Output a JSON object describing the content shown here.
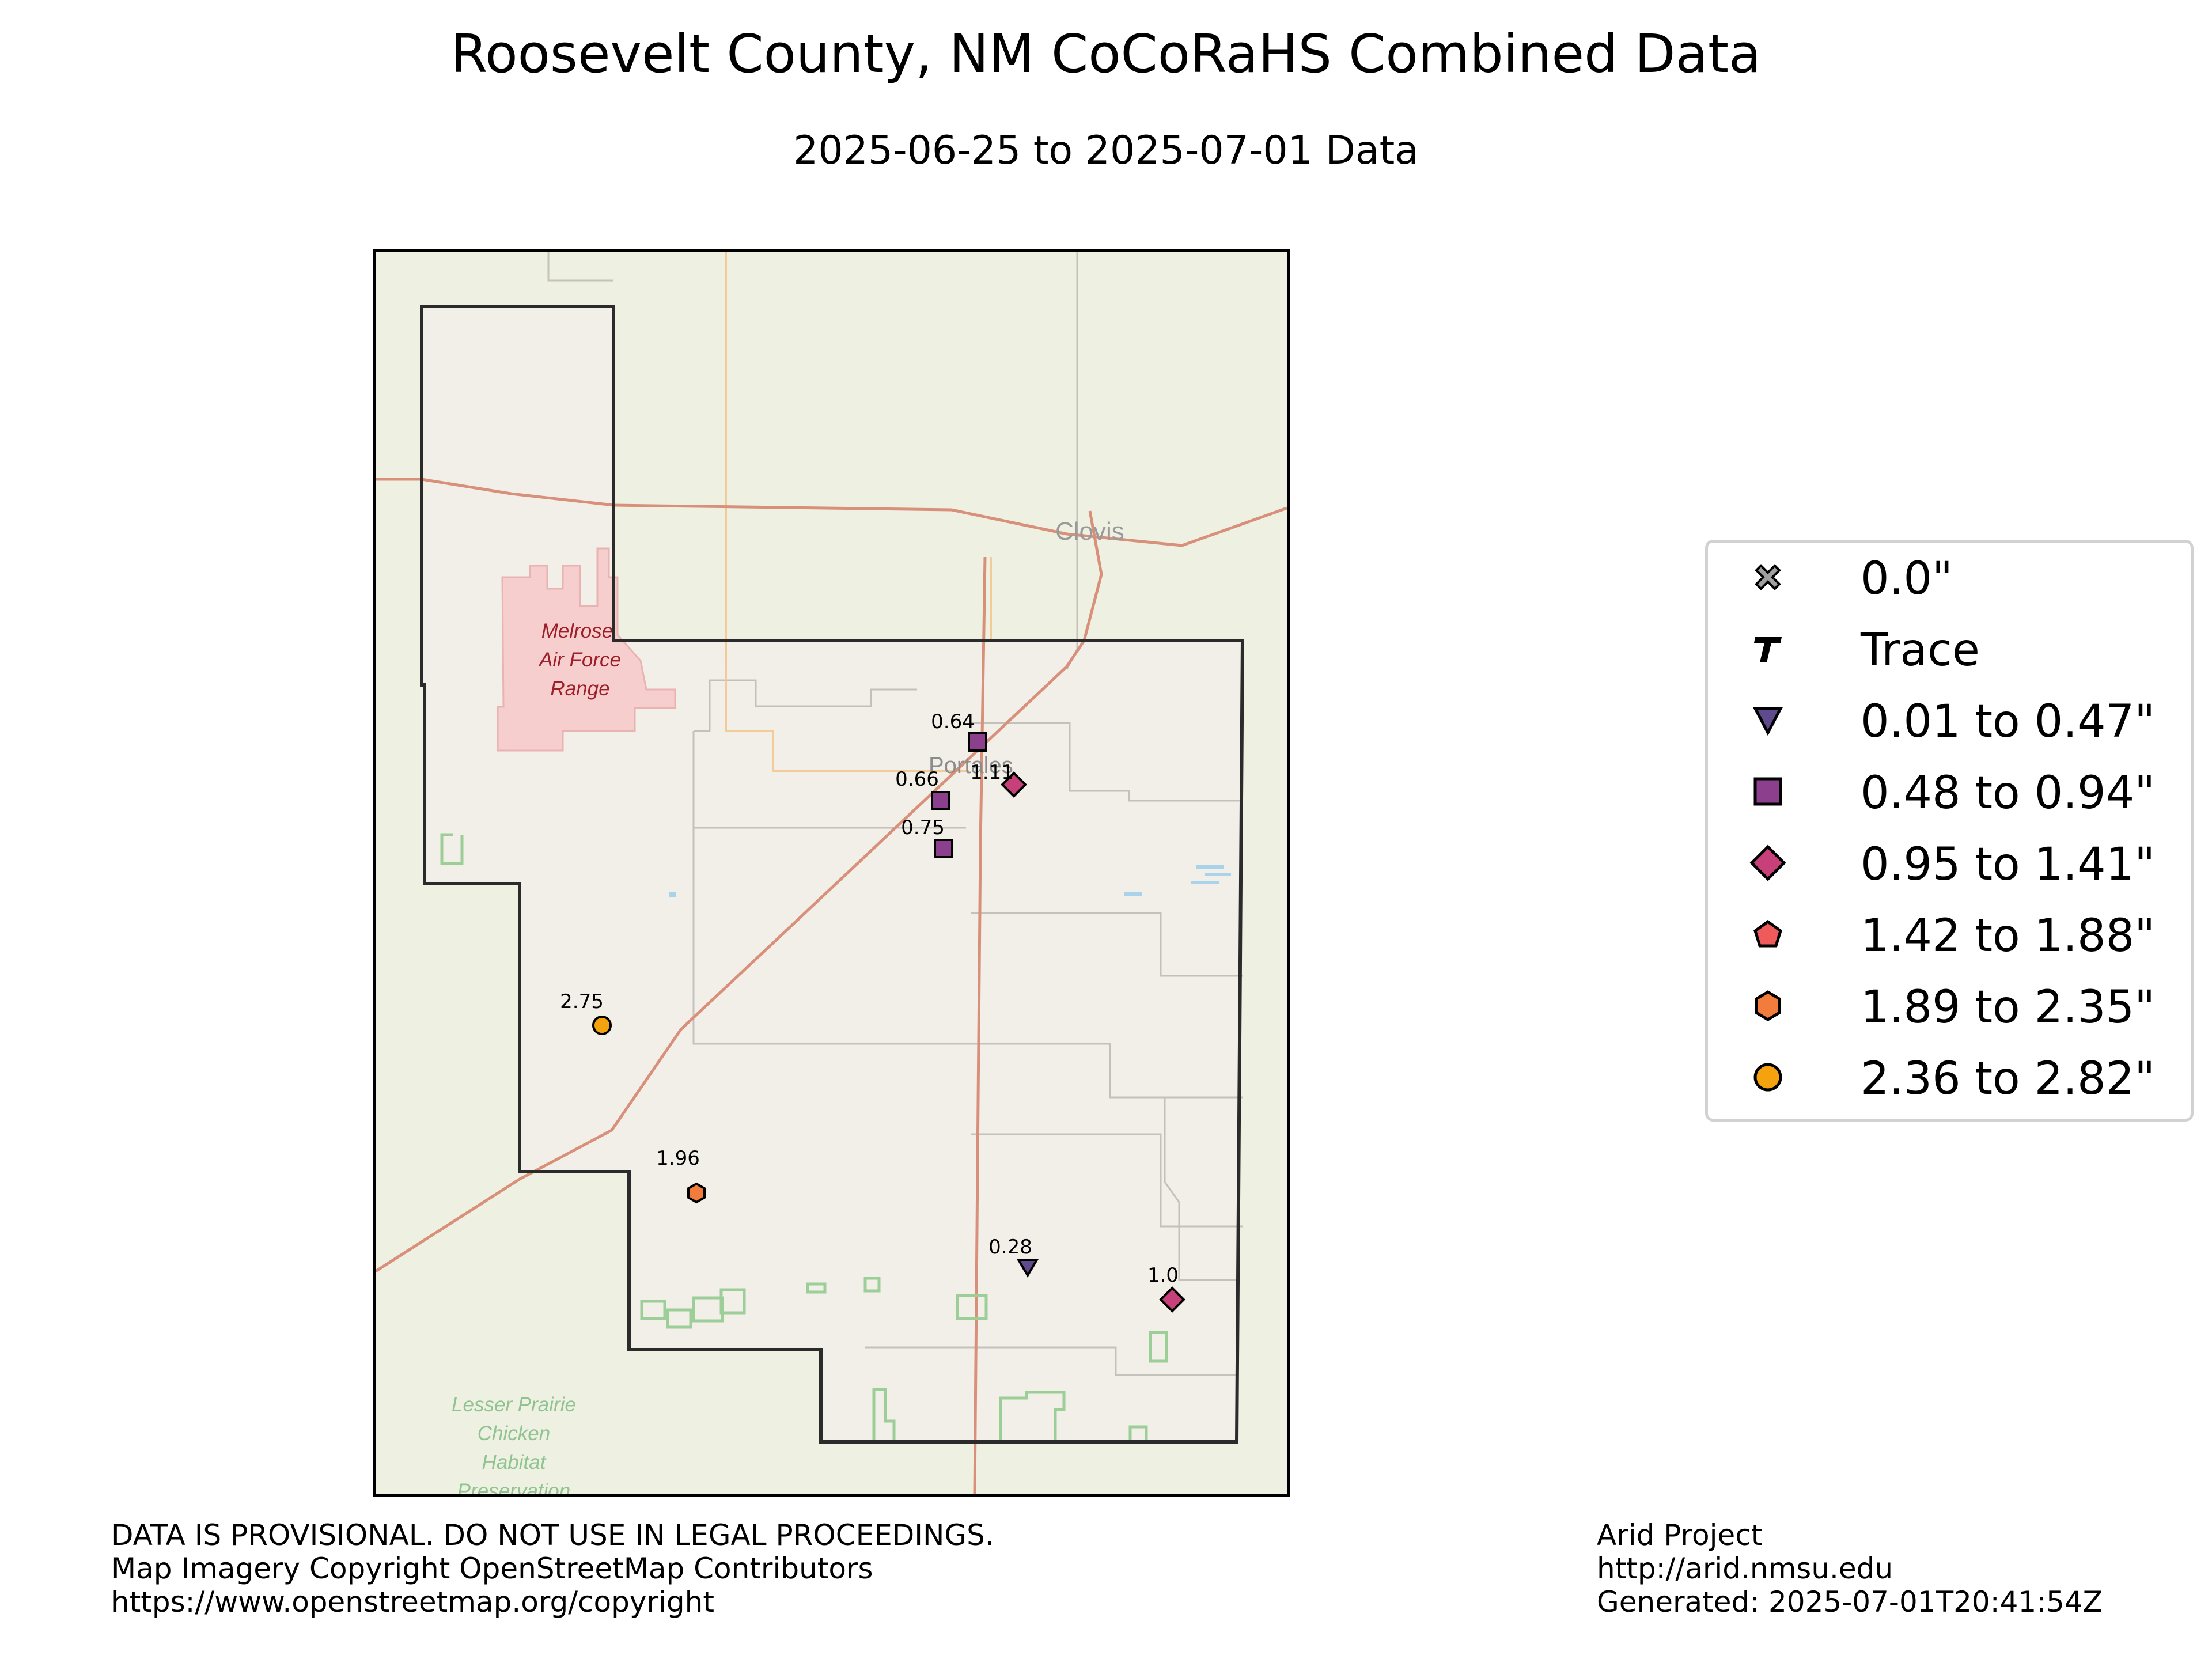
{
  "title": "Roosevelt County, NM CoCoRaHS Combined Data",
  "subtitle": "2025-06-25 to 2025-07-01 Data",
  "map": {
    "place_labels": {
      "clovis": "Clovis",
      "portales": "Portales",
      "melrose": [
        "Melrose",
        "Air Force",
        "Range"
      ],
      "lesser_prairie": [
        "Lesser Prairie",
        "Chicken",
        "Habitat",
        "Preservation"
      ]
    },
    "colors": {
      "background": "#eef0e2",
      "county_fill": "#f2efe9",
      "county_border": "#2b2b2b",
      "road_major": "#e08a73",
      "road_secondary": "#f3c78f",
      "road_minor": "#b9b6b2",
      "restricted_area": "#f6c9c9",
      "protected_area": "#9ccf98",
      "water": "#a8d3ea"
    },
    "stations": [
      {
        "value": "0.64",
        "category": "0.48 to 0.94\""
      },
      {
        "value": "1.11",
        "category": "0.95 to 1.41\""
      },
      {
        "value": "0.66",
        "category": "0.48 to 0.94\""
      },
      {
        "value": "0.75",
        "category": "0.48 to 0.94\""
      },
      {
        "value": "2.75",
        "category": "2.36 to 2.82\""
      },
      {
        "value": "1.96",
        "category": "1.89 to 2.35\""
      },
      {
        "value": "0.28",
        "category": "0.01 to 0.47\""
      },
      {
        "value": "1.0",
        "category": "0.95 to 1.41\""
      }
    ]
  },
  "legend": {
    "items": [
      {
        "label": "0.0\"",
        "icon": "x-marker",
        "color": "#a0a0a0"
      },
      {
        "label": "Trace",
        "icon": "t-marker",
        "color": "#000000"
      },
      {
        "label": "0.01 to 0.47\"",
        "icon": "triangle-down-marker",
        "color": "#5e4a8c"
      },
      {
        "label": "0.48 to 0.94\"",
        "icon": "square-marker",
        "color": "#8c3f8c"
      },
      {
        "label": "0.95 to 1.41\"",
        "icon": "diamond-marker",
        "color": "#c8407a"
      },
      {
        "label": "1.42 to 1.88\"",
        "icon": "pentagon-marker",
        "color": "#ef5a5a"
      },
      {
        "label": "1.89 to 2.35\"",
        "icon": "hexagon-marker",
        "color": "#f27c3c"
      },
      {
        "label": "2.36 to 2.82\"",
        "icon": "circle-marker",
        "color": "#f5a20f"
      }
    ]
  },
  "footer": {
    "disclaimer": "DATA IS PROVISIONAL. DO NOT USE IN LEGAL PROCEEDINGS.",
    "copyright": "Map Imagery Copyright OpenStreetMap Contributors",
    "copyright_url": "https://www.openstreetmap.org/copyright",
    "project": "Arid Project",
    "project_url": "http://arid.nmsu.edu",
    "generated": "Generated: 2025-07-01T20:41:54Z"
  }
}
